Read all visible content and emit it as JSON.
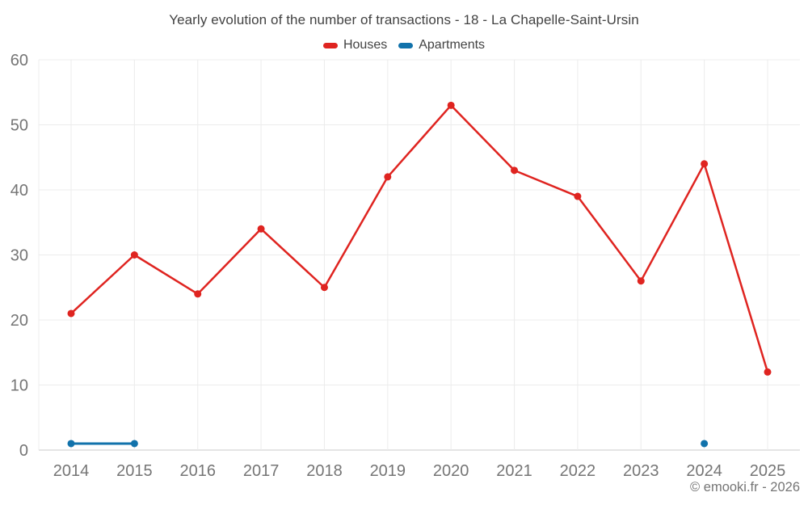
{
  "title": "Yearly evolution of the number of transactions - 18 - La Chapelle-Saint-Ursin",
  "copyright": "© emooki.fr - 2026",
  "colors": {
    "houses": "#df2420",
    "apartments": "#1172ab",
    "title_text": "#424242",
    "tick_text": "#757575",
    "gridline": "#ececec",
    "axis_line": "#c9c9c9",
    "background": "#ffffff"
  },
  "chart_data": {
    "type": "line",
    "title": "Yearly evolution of the number of transactions - 18 - La Chapelle-Saint-Ursin",
    "x": [
      "2014",
      "2015",
      "2016",
      "2017",
      "2018",
      "2019",
      "2020",
      "2021",
      "2022",
      "2023",
      "2024",
      "2025"
    ],
    "xlabel": "",
    "ylabel": "",
    "ylim": [
      0,
      60
    ],
    "yticks": [
      0,
      10,
      20,
      30,
      40,
      50,
      60
    ],
    "grid": true,
    "legend_position": "top",
    "series": [
      {
        "name": "Houses",
        "color": "#df2420",
        "values": [
          21,
          30,
          24,
          34,
          25,
          42,
          53,
          43,
          39,
          26,
          44,
          12
        ]
      },
      {
        "name": "Apartments",
        "color": "#1172ab",
        "values": [
          1,
          1,
          null,
          null,
          null,
          null,
          null,
          null,
          null,
          null,
          1,
          null
        ]
      }
    ]
  }
}
